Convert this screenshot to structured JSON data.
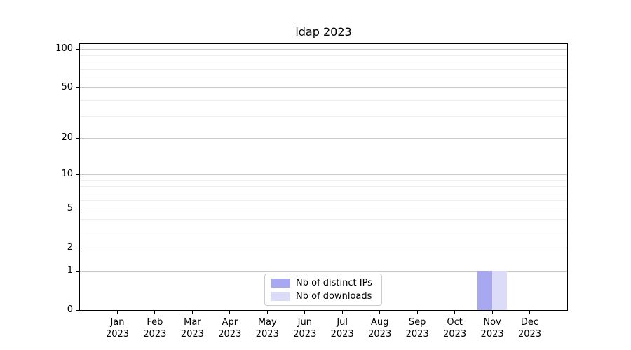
{
  "chart_data": {
    "type": "bar",
    "title": "ldap 2023",
    "categories": [
      "Jan",
      "Feb",
      "Mar",
      "Apr",
      "May",
      "Jun",
      "Jul",
      "Aug",
      "Sep",
      "Oct",
      "Nov",
      "Dec"
    ],
    "year_label": "2023",
    "series": [
      {
        "name": "Nb of distinct IPs",
        "color": "#a8a8f0",
        "values": [
          0,
          0,
          0,
          0,
          0,
          0,
          0,
          0,
          0,
          0,
          1,
          0
        ]
      },
      {
        "name": "Nb of downloads",
        "color": "#dcdcf8",
        "values": [
          0,
          0,
          0,
          0,
          0,
          0,
          0,
          0,
          0,
          0,
          1,
          0
        ]
      }
    ],
    "y_axis": {
      "scale": "log1p",
      "tick_values": [
        0,
        1,
        2,
        5,
        10,
        20,
        50,
        100
      ],
      "minor_grid_values": [
        3,
        4,
        6,
        7,
        8,
        9,
        30,
        40,
        60,
        70,
        80,
        90
      ],
      "ylim": [
        0,
        112
      ]
    },
    "x_axis": {
      "tick_label_format": "month-over-year"
    },
    "legend": {
      "position": "lower center"
    },
    "grid": true,
    "colors": {
      "background": "#ffffff",
      "axis": "#000000",
      "text": "#000000",
      "grid_major": "#c9c9c9",
      "grid_minor": "#ededed",
      "legend_border": "#cccccc"
    }
  }
}
